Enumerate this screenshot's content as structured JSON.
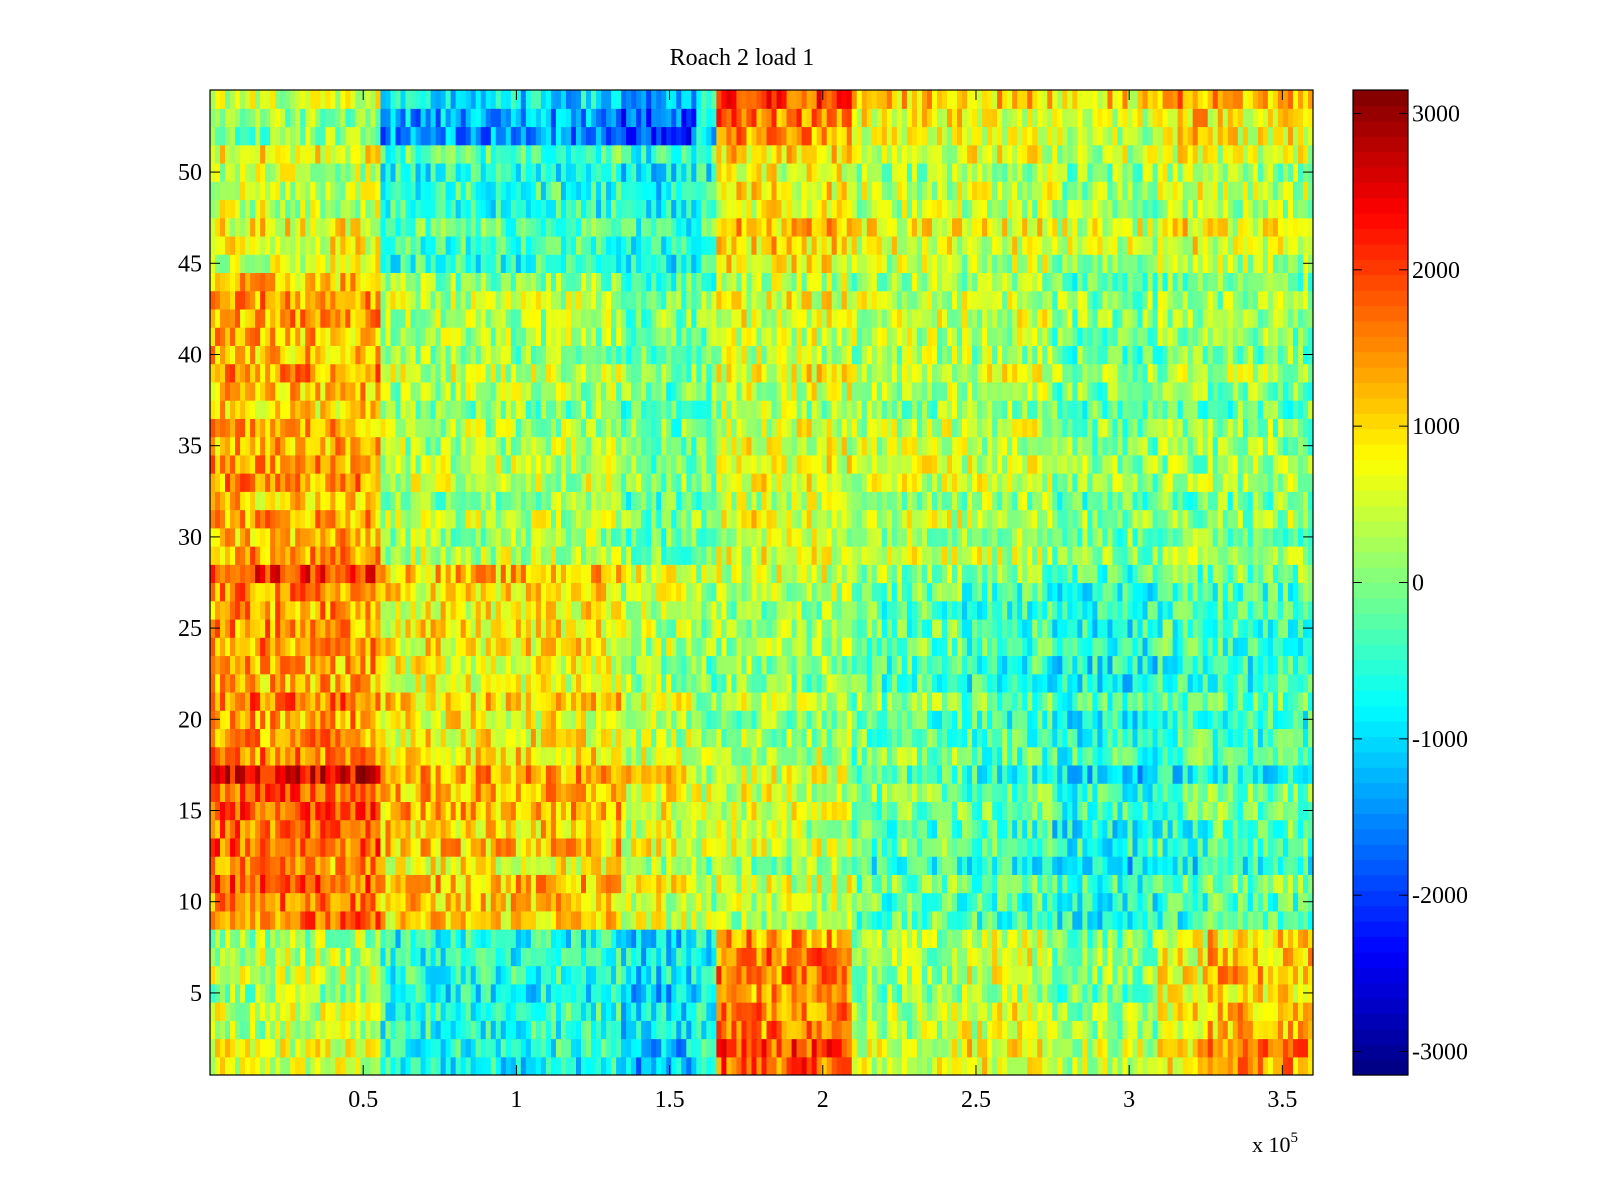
{
  "chart_data": {
    "type": "heatmap",
    "title": "Roach 2 load 1",
    "xlabel": "",
    "ylabel": "",
    "x_multiplier_label": "x 10",
    "x_multiplier_exponent": "5",
    "xlim": [
      0,
      3.6
    ],
    "ylim": [
      0.5,
      54.5
    ],
    "xticks": [
      {
        "value": 0.5,
        "label": "0.5"
      },
      {
        "value": 1,
        "label": "1"
      },
      {
        "value": 1.5,
        "label": "1.5"
      },
      {
        "value": 2,
        "label": "2"
      },
      {
        "value": 2.5,
        "label": "2.5"
      },
      {
        "value": 3,
        "label": "3"
      },
      {
        "value": 3.5,
        "label": "3.5"
      }
    ],
    "yticks": [
      {
        "value": 5,
        "label": "5"
      },
      {
        "value": 10,
        "label": "10"
      },
      {
        "value": 15,
        "label": "15"
      },
      {
        "value": 20,
        "label": "20"
      },
      {
        "value": 25,
        "label": "25"
      },
      {
        "value": 30,
        "label": "30"
      },
      {
        "value": 35,
        "label": "35"
      },
      {
        "value": 40,
        "label": "40"
      },
      {
        "value": 45,
        "label": "45"
      },
      {
        "value": 50,
        "label": "50"
      }
    ],
    "n_rows": 54,
    "x_bands": [
      0,
      0.55,
      1.35,
      1.58,
      1.65,
      2.1,
      2.45,
      2.75,
      3.1,
      3.25,
      3.6
    ],
    "band_values": [
      {
        "rows": [
          1,
          2
        ],
        "values": [
          400,
          -800,
          -1300,
          -900,
          1700,
          400,
          700,
          200,
          900,
          1300
        ]
      },
      {
        "rows": [
          3,
          8
        ],
        "values": [
          300,
          -600,
          -900,
          -700,
          1500,
          200,
          500,
          0,
          700,
          1100
        ]
      },
      {
        "rows": [
          9,
          16
        ],
        "values": [
          1600,
          1000,
          500,
          200,
          300,
          -300,
          -400,
          -700,
          -500,
          -300
        ]
      },
      {
        "rows": [
          17,
          17
        ],
        "values": [
          2300,
          1100,
          800,
          200,
          300,
          -500,
          -700,
          -1200,
          -1000,
          -900
        ]
      },
      {
        "rows": [
          18,
          27
        ],
        "values": [
          1500,
          900,
          400,
          200,
          300,
          -100,
          -300,
          -500,
          -300,
          -300
        ]
      },
      {
        "rows": [
          28,
          28
        ],
        "values": [
          1900,
          900,
          500,
          100,
          300,
          -100,
          -300,
          -600,
          -400,
          -300
        ]
      },
      {
        "rows": [
          29,
          44
        ],
        "values": [
          1200,
          200,
          -200,
          -100,
          500,
          300,
          300,
          -100,
          0,
          0
        ]
      },
      {
        "rows": [
          45,
          51
        ],
        "values": [
          600,
          -400,
          -700,
          -400,
          900,
          500,
          500,
          300,
          600,
          400
        ]
      },
      {
        "rows": [
          52,
          54
        ],
        "values": [
          300,
          -1200,
          -1700,
          -800,
          1700,
          900,
          800,
          700,
          1200,
          1000
        ]
      }
    ],
    "colorbar": {
      "colormap": "jet",
      "range": [
        -3150,
        3150
      ],
      "ticks": [
        {
          "value": 3000,
          "label": "3000"
        },
        {
          "value": 2000,
          "label": "2000"
        },
        {
          "value": 1000,
          "label": "1000"
        },
        {
          "value": 0,
          "label": "0"
        },
        {
          "value": -1000,
          "label": "-1000"
        },
        {
          "value": -2000,
          "label": "-2000"
        },
        {
          "value": -3000,
          "label": "-3000"
        }
      ]
    }
  }
}
